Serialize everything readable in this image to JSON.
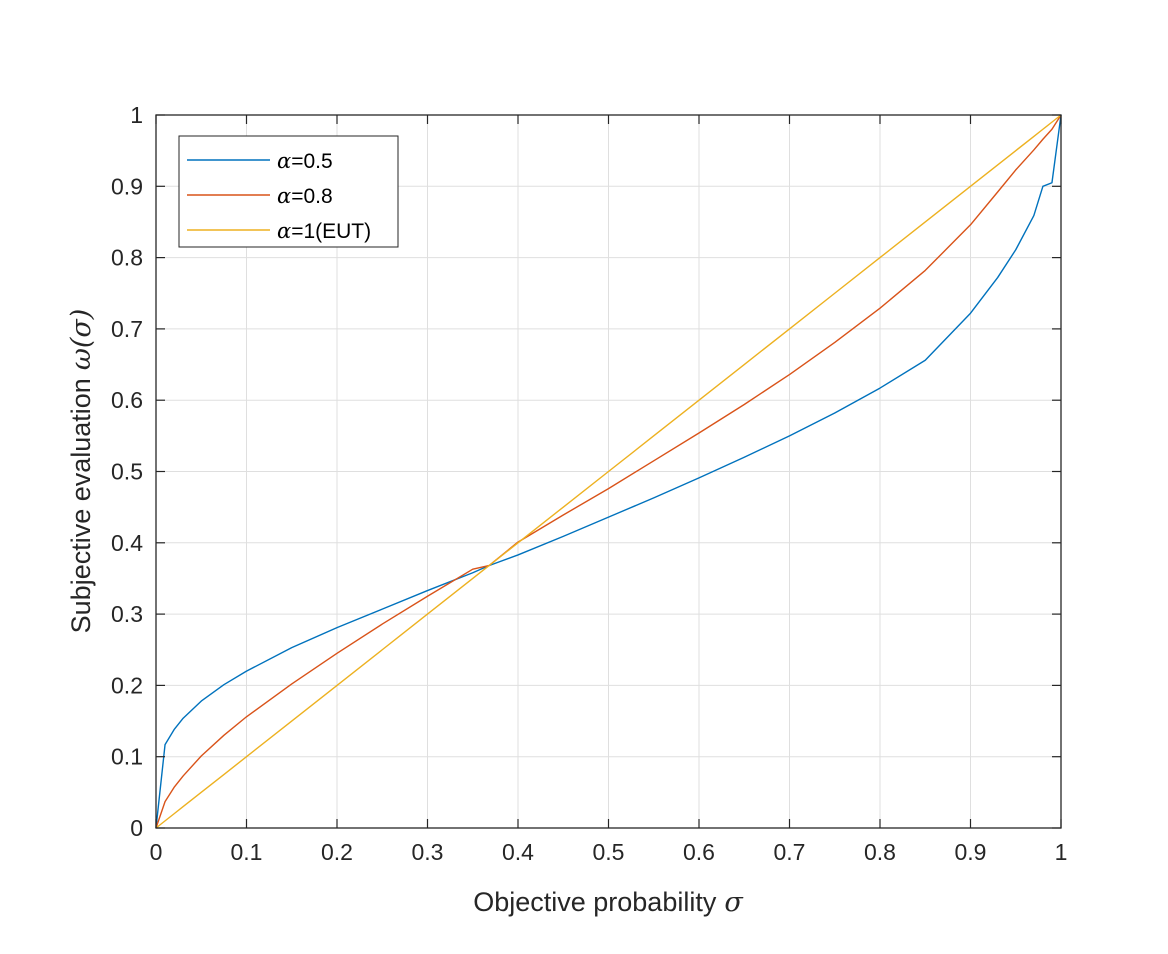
{
  "chart_data": {
    "type": "line",
    "title": "",
    "xlabel_text": "Objective probability",
    "xlabel_symbol": "σ",
    "ylabel_text": "Subjective evaluation",
    "ylabel_symbol": "ω(σ)",
    "xlim": [
      0,
      1
    ],
    "ylim": [
      0,
      1
    ],
    "xticks": [
      0,
      0.1,
      0.2,
      0.3,
      0.4,
      0.5,
      0.6,
      0.7,
      0.8,
      0.9,
      1
    ],
    "yticks": [
      0,
      0.1,
      0.2,
      0.3,
      0.4,
      0.5,
      0.6,
      0.7,
      0.8,
      0.9,
      1
    ],
    "xtick_labels": [
      "0",
      "0.1",
      "0.2",
      "0.3",
      "0.4",
      "0.5",
      "0.6",
      "0.7",
      "0.8",
      "0.9",
      "1"
    ],
    "ytick_labels": [
      "0",
      "0.1",
      "0.2",
      "0.3",
      "0.4",
      "0.5",
      "0.6",
      "0.7",
      "0.8",
      "0.9",
      "1"
    ],
    "grid": true,
    "legend_position": "top-left",
    "x": [
      0,
      0.01,
      0.02,
      0.03,
      0.05,
      0.075,
      0.1,
      0.15,
      0.2,
      0.25,
      0.3,
      0.35,
      0.3679,
      0.4,
      0.45,
      0.5,
      0.55,
      0.6,
      0.65,
      0.7,
      0.75,
      0.8,
      0.85,
      0.9,
      0.93,
      0.95,
      0.97,
      0.98,
      0.99,
      1
    ],
    "series": [
      {
        "name_symbol": "α",
        "name_suffix": "=0.5",
        "color": "#0072BD",
        "values": [
          0,
          0.117,
          0.138,
          0.154,
          0.178,
          0.201,
          0.22,
          0.253,
          0.281,
          0.307,
          0.333,
          0.358,
          0.368,
          0.383,
          0.409,
          0.436,
          0.463,
          0.491,
          0.52,
          0.55,
          0.582,
          0.617,
          0.656,
          0.722,
          0.772,
          0.811,
          0.859,
          0.9,
          0.905,
          1
        ]
      },
      {
        "name_symbol": "α",
        "name_suffix": "=0.8",
        "color": "#D95319",
        "values": [
          0,
          0.037,
          0.057,
          0.073,
          0.101,
          0.13,
          0.156,
          0.202,
          0.245,
          0.286,
          0.325,
          0.363,
          0.368,
          0.401,
          0.439,
          0.476,
          0.515,
          0.554,
          0.594,
          0.636,
          0.681,
          0.729,
          0.782,
          0.846,
          0.892,
          0.923,
          0.951,
          0.966,
          0.98,
          1
        ]
      },
      {
        "name_symbol": "α",
        "name_suffix": "=1(EUT)",
        "color": "#EDB120",
        "values": [
          0,
          0.01,
          0.02,
          0.03,
          0.05,
          0.075,
          0.1,
          0.15,
          0.2,
          0.25,
          0.3,
          0.35,
          0.3679,
          0.4,
          0.45,
          0.5,
          0.55,
          0.6,
          0.65,
          0.7,
          0.75,
          0.8,
          0.85,
          0.9,
          0.93,
          0.95,
          0.97,
          0.98,
          0.99,
          1
        ]
      }
    ]
  }
}
